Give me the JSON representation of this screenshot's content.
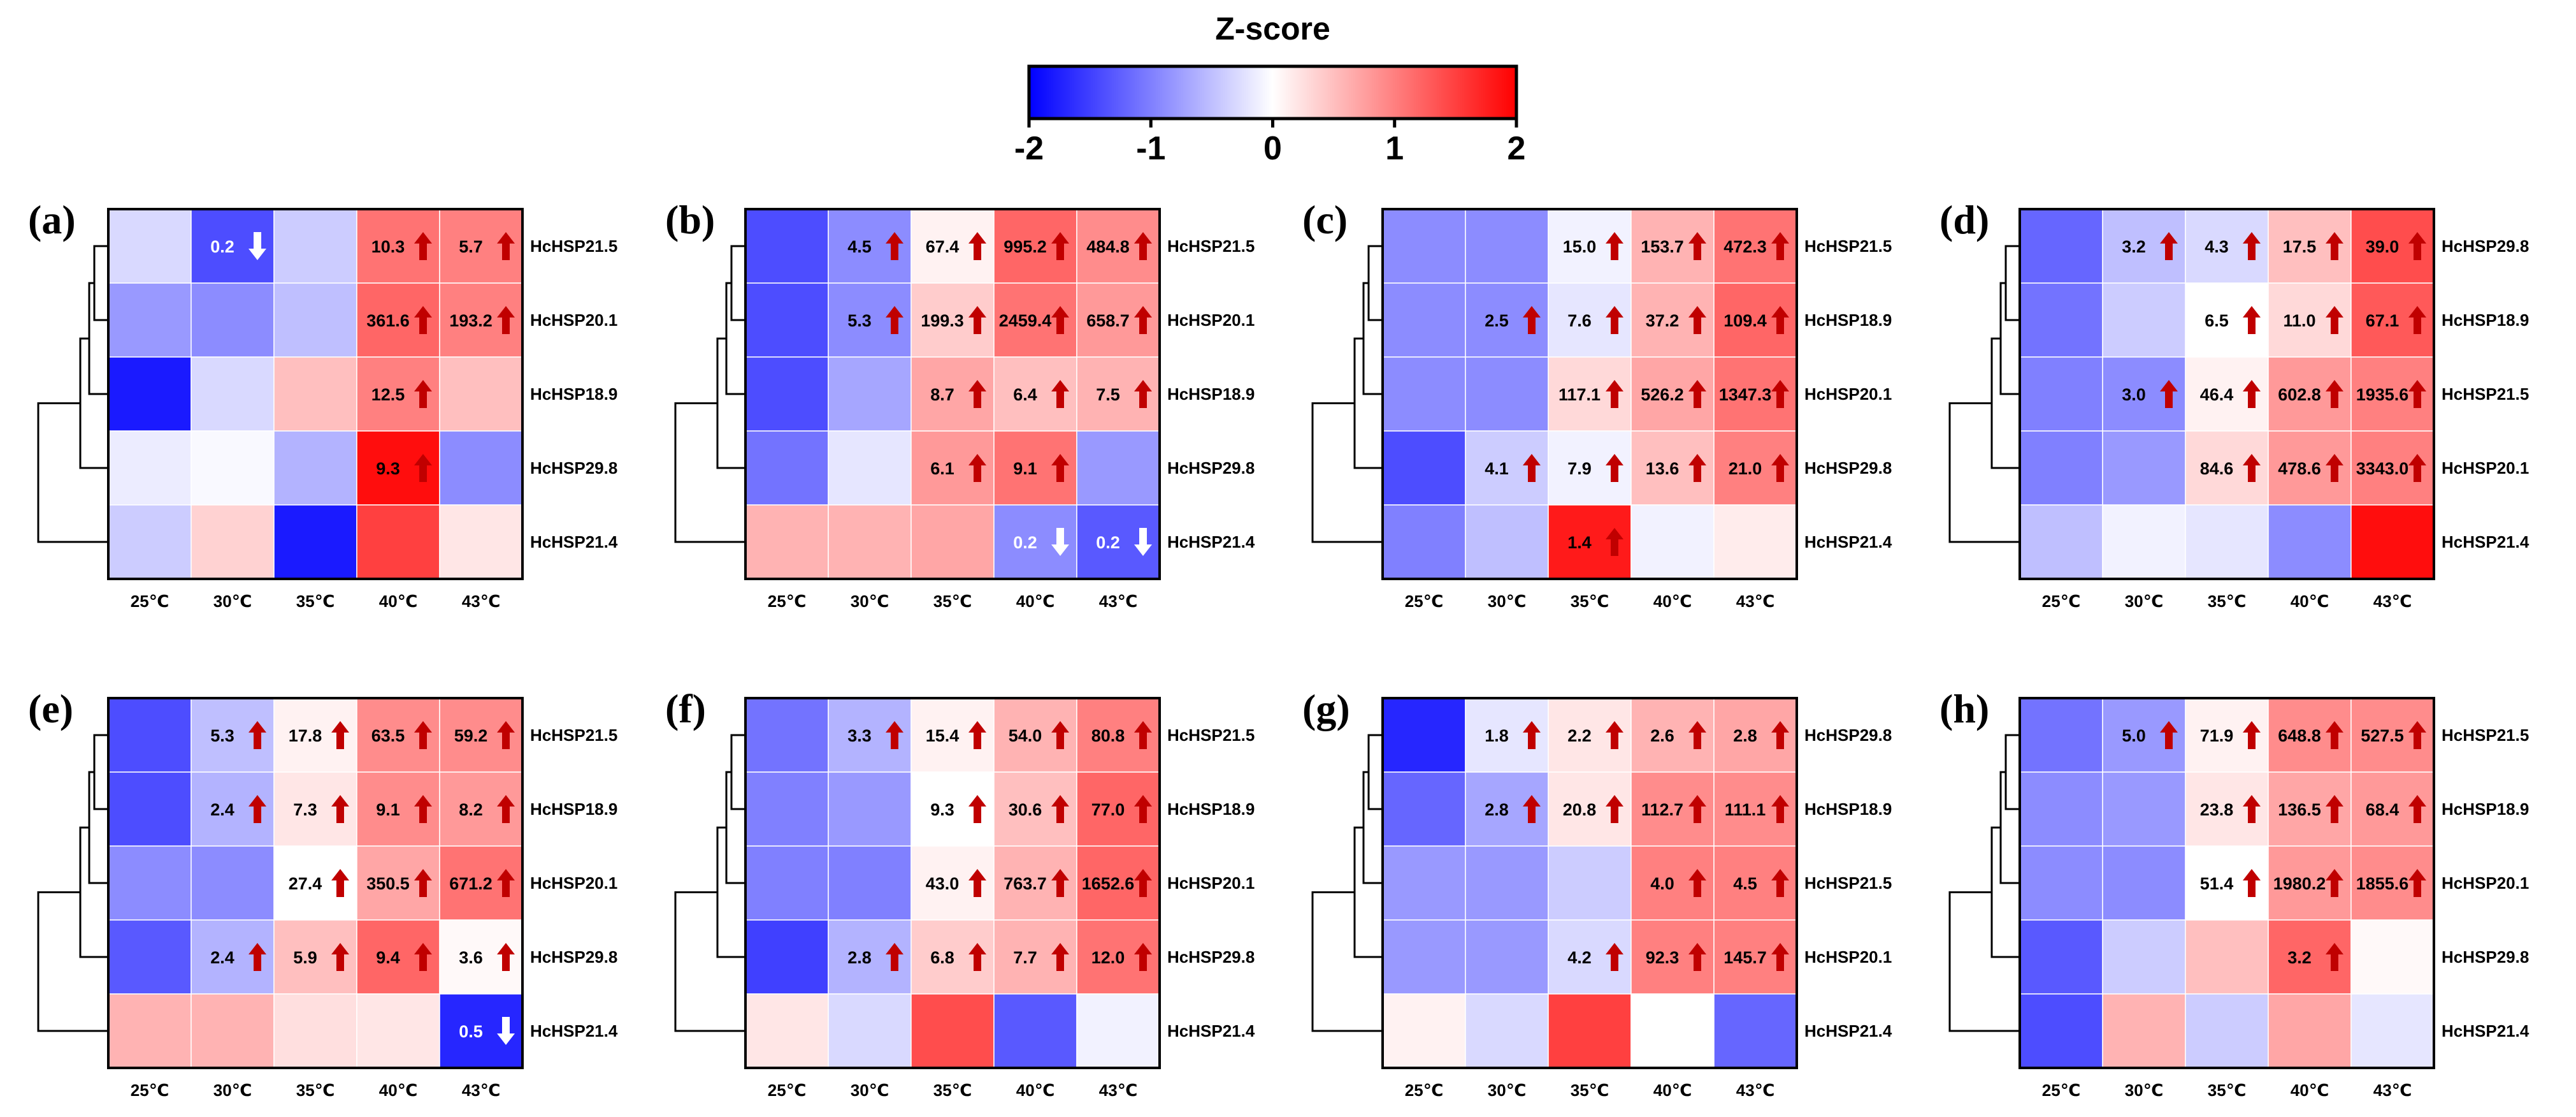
{
  "chart_data": {
    "type": "heatmap",
    "colorbar": {
      "title": "Z-score",
      "range": [
        -2,
        2
      ],
      "ticks": [
        "-2",
        "-1",
        "0",
        "1",
        "2"
      ],
      "colors": {
        "low": "#0000ff",
        "mid": "#ffffff",
        "high": "#ff0000"
      }
    },
    "arrow_colors": {
      "up": "#c00000",
      "down": "#ffffff"
    },
    "panels": [
      {
        "label": "(a)",
        "columns": [
          "25℃",
          "30℃",
          "35℃",
          "40℃",
          "43℃"
        ],
        "rows": [
          "HcHSP21.5",
          "HcHSP20.1",
          "HcHSP18.9",
          "HcHSP29.8",
          "HcHSP21.4"
        ],
        "z": [
          [
            -0.3,
            -1.4,
            -0.4,
            1.1,
            1.0
          ],
          [
            -0.8,
            -0.9,
            -0.5,
            1.2,
            1.0
          ],
          [
            -1.8,
            -0.3,
            0.5,
            1.0,
            0.5
          ],
          [
            -0.15,
            -0.05,
            -0.6,
            1.9,
            -0.9
          ],
          [
            -0.4,
            0.35,
            -1.8,
            1.5,
            0.2
          ]
        ],
        "annotations": [
          [
            null,
            {
              "value": "0.2",
              "arrow": "down"
            },
            null,
            {
              "value": "10.3",
              "arrow": "up"
            },
            {
              "value": "5.7",
              "arrow": "up"
            }
          ],
          [
            null,
            null,
            null,
            {
              "value": "361.6",
              "arrow": "up"
            },
            {
              "value": "193.2",
              "arrow": "up"
            }
          ],
          [
            null,
            null,
            null,
            {
              "value": "12.5",
              "arrow": "up"
            },
            null
          ],
          [
            null,
            null,
            null,
            {
              "value": "9.3",
              "arrow": "up"
            },
            null
          ],
          [
            null,
            null,
            null,
            null,
            null
          ]
        ]
      },
      {
        "label": "(b)",
        "columns": [
          "25℃",
          "30℃",
          "35℃",
          "40℃",
          "43℃"
        ],
        "rows": [
          "HcHSP21.5",
          "HcHSP20.1",
          "HcHSP18.9",
          "HcHSP29.8",
          "HcHSP21.4"
        ],
        "z": [
          [
            -1.4,
            -0.9,
            0.1,
            1.2,
            0.9
          ],
          [
            -1.4,
            -0.9,
            0.4,
            1.1,
            0.8
          ],
          [
            -1.4,
            -0.7,
            0.7,
            0.5,
            0.6
          ],
          [
            -1.1,
            -0.2,
            0.8,
            1.1,
            -0.8
          ],
          [
            0.6,
            0.6,
            0.7,
            -0.9,
            -1.3
          ]
        ],
        "annotations": [
          [
            null,
            {
              "value": "4.5",
              "arrow": "up"
            },
            {
              "value": "67.4",
              "arrow": "up"
            },
            {
              "value": "995.2",
              "arrow": "up"
            },
            {
              "value": "484.8",
              "arrow": "up"
            }
          ],
          [
            null,
            {
              "value": "5.3",
              "arrow": "up"
            },
            {
              "value": "199.3",
              "arrow": "up"
            },
            {
              "value": "2459.4",
              "arrow": "up"
            },
            {
              "value": "658.7",
              "arrow": "up"
            }
          ],
          [
            null,
            null,
            {
              "value": "8.7",
              "arrow": "up"
            },
            {
              "value": "6.4",
              "arrow": "up"
            },
            {
              "value": "7.5",
              "arrow": "up"
            }
          ],
          [
            null,
            null,
            {
              "value": "6.1",
              "arrow": "up"
            },
            {
              "value": "9.1",
              "arrow": "up"
            },
            null
          ],
          [
            null,
            null,
            null,
            {
              "value": "0.2",
              "arrow": "down"
            },
            {
              "value": "0.2",
              "arrow": "down"
            }
          ]
        ]
      },
      {
        "label": "(c)",
        "columns": [
          "25℃",
          "30℃",
          "35℃",
          "40℃",
          "43℃"
        ],
        "rows": [
          "HcHSP21.5",
          "HcHSP18.9",
          "HcHSP20.1",
          "HcHSP29.8",
          "HcHSP21.4"
        ],
        "z": [
          [
            -0.9,
            -0.9,
            -0.1,
            0.6,
            1.1
          ],
          [
            -0.9,
            -0.9,
            -0.2,
            0.6,
            1.2
          ],
          [
            -0.9,
            -0.9,
            0.3,
            0.7,
            1.1
          ],
          [
            -1.4,
            -0.4,
            -0.1,
            0.5,
            1.0
          ],
          [
            -1.0,
            -0.5,
            1.8,
            -0.1,
            0.15
          ]
        ],
        "annotations": [
          [
            null,
            null,
            {
              "value": "15.0",
              "arrow": "up"
            },
            {
              "value": "153.7",
              "arrow": "up"
            },
            {
              "value": "472.3",
              "arrow": "up"
            }
          ],
          [
            null,
            {
              "value": "2.5",
              "arrow": "up"
            },
            {
              "value": "7.6",
              "arrow": "up"
            },
            {
              "value": "37.2",
              "arrow": "up"
            },
            {
              "value": "109.4",
              "arrow": "up"
            }
          ],
          [
            null,
            null,
            {
              "value": "117.1",
              "arrow": "up"
            },
            {
              "value": "526.2",
              "arrow": "up"
            },
            {
              "value": "1347.3",
              "arrow": "up"
            }
          ],
          [
            null,
            {
              "value": "4.1",
              "arrow": "up"
            },
            {
              "value": "7.9",
              "arrow": "up"
            },
            {
              "value": "13.6",
              "arrow": "up"
            },
            {
              "value": "21.0",
              "arrow": "up"
            }
          ],
          [
            null,
            null,
            {
              "value": "1.4",
              "arrow": "up"
            },
            null,
            null
          ]
        ]
      },
      {
        "label": "(d)",
        "columns": [
          "25℃",
          "30℃",
          "35℃",
          "40℃",
          "43℃"
        ],
        "rows": [
          "HcHSP29.8",
          "HcHSP18.9",
          "HcHSP21.5",
          "HcHSP20.1",
          "HcHSP21.4"
        ],
        "z": [
          [
            -1.2,
            -0.5,
            -0.3,
            0.5,
            1.4
          ],
          [
            -1.1,
            -0.4,
            0.0,
            0.3,
            1.3
          ],
          [
            -1.0,
            -0.9,
            0.1,
            0.8,
            1.0
          ],
          [
            -1.0,
            -0.8,
            0.3,
            0.8,
            1.0
          ],
          [
            -0.5,
            -0.1,
            -0.2,
            -0.9,
            1.9
          ]
        ],
        "annotations": [
          [
            null,
            {
              "value": "3.2",
              "arrow": "up"
            },
            {
              "value": "4.3",
              "arrow": "up"
            },
            {
              "value": "17.5",
              "arrow": "up"
            },
            {
              "value": "39.0",
              "arrow": "up"
            }
          ],
          [
            null,
            null,
            {
              "value": "6.5",
              "arrow": "up"
            },
            {
              "value": "11.0",
              "arrow": "up"
            },
            {
              "value": "67.1",
              "arrow": "up"
            }
          ],
          [
            null,
            {
              "value": "3.0",
              "arrow": "up"
            },
            {
              "value": "46.4",
              "arrow": "up"
            },
            {
              "value": "602.8",
              "arrow": "up"
            },
            {
              "value": "1935.6",
              "arrow": "up"
            }
          ],
          [
            null,
            null,
            {
              "value": "84.6",
              "arrow": "up"
            },
            {
              "value": "478.6",
              "arrow": "up"
            },
            {
              "value": "3343.0",
              "arrow": "up"
            }
          ],
          [
            null,
            null,
            null,
            null,
            null
          ]
        ]
      },
      {
        "label": "(e)",
        "columns": [
          "25℃",
          "30℃",
          "35℃",
          "40℃",
          "43℃"
        ],
        "rows": [
          "HcHSP21.5",
          "HcHSP18.9",
          "HcHSP20.1",
          "HcHSP29.8",
          "HcHSP21.4"
        ],
        "z": [
          [
            -1.4,
            -0.5,
            0.1,
            0.9,
            0.9
          ],
          [
            -1.4,
            -0.6,
            0.2,
            0.9,
            0.8
          ],
          [
            -0.9,
            -0.9,
            0.0,
            0.7,
            1.1
          ],
          [
            -1.3,
            -0.6,
            0.5,
            1.2,
            0.05
          ],
          [
            0.6,
            0.6,
            0.25,
            0.2,
            -1.7
          ]
        ],
        "annotations": [
          [
            null,
            {
              "value": "5.3",
              "arrow": "up"
            },
            {
              "value": "17.8",
              "arrow": "up"
            },
            {
              "value": "63.5",
              "arrow": "up"
            },
            {
              "value": "59.2",
              "arrow": "up"
            }
          ],
          [
            null,
            {
              "value": "2.4",
              "arrow": "up"
            },
            {
              "value": "7.3",
              "arrow": "up"
            },
            {
              "value": "9.1",
              "arrow": "up"
            },
            {
              "value": "8.2",
              "arrow": "up"
            }
          ],
          [
            null,
            null,
            {
              "value": "27.4",
              "arrow": "up"
            },
            {
              "value": "350.5",
              "arrow": "up"
            },
            {
              "value": "671.2",
              "arrow": "up"
            }
          ],
          [
            null,
            {
              "value": "2.4",
              "arrow": "up"
            },
            {
              "value": "5.9",
              "arrow": "up"
            },
            {
              "value": "9.4",
              "arrow": "up"
            },
            {
              "value": "3.6",
              "arrow": "up"
            }
          ],
          [
            null,
            null,
            null,
            null,
            {
              "value": "0.5",
              "arrow": "down"
            }
          ]
        ]
      },
      {
        "label": "(f)",
        "columns": [
          "25℃",
          "30℃",
          "35℃",
          "40℃",
          "43℃"
        ],
        "rows": [
          "HcHSP21.5",
          "HcHSP18.9",
          "HcHSP20.1",
          "HcHSP29.8",
          "HcHSP21.4"
        ],
        "z": [
          [
            -1.1,
            -0.6,
            0.1,
            0.6,
            1.0
          ],
          [
            -1.0,
            -0.8,
            0.0,
            0.5,
            1.2
          ],
          [
            -1.0,
            -1.0,
            0.1,
            0.6,
            1.2
          ],
          [
            -1.5,
            -0.6,
            0.4,
            0.6,
            1.1
          ],
          [
            0.2,
            -0.3,
            1.4,
            -1.3,
            -0.1
          ]
        ],
        "annotations": [
          [
            null,
            {
              "value": "3.3",
              "arrow": "up"
            },
            {
              "value": "15.4",
              "arrow": "up"
            },
            {
              "value": "54.0",
              "arrow": "up"
            },
            {
              "value": "80.8",
              "arrow": "up"
            }
          ],
          [
            null,
            null,
            {
              "value": "9.3",
              "arrow": "up"
            },
            {
              "value": "30.6",
              "arrow": "up"
            },
            {
              "value": "77.0",
              "arrow": "up"
            }
          ],
          [
            null,
            null,
            {
              "value": "43.0",
              "arrow": "up"
            },
            {
              "value": "763.7",
              "arrow": "up"
            },
            {
              "value": "1652.6",
              "arrow": "up"
            }
          ],
          [
            null,
            {
              "value": "2.8",
              "arrow": "up"
            },
            {
              "value": "6.8",
              "arrow": "up"
            },
            {
              "value": "7.7",
              "arrow": "up"
            },
            {
              "value": "12.0",
              "arrow": "up"
            }
          ],
          [
            null,
            null,
            null,
            null,
            null
          ]
        ]
      },
      {
        "label": "(g)",
        "columns": [
          "25℃",
          "30℃",
          "35℃",
          "40℃",
          "43℃"
        ],
        "rows": [
          "HcHSP29.8",
          "HcHSP18.9",
          "HcHSP21.5",
          "HcHSP20.1",
          "HcHSP21.4"
        ],
        "z": [
          [
            -1.7,
            -0.2,
            0.2,
            0.6,
            0.7
          ],
          [
            -1.2,
            -0.7,
            0.2,
            0.9,
            0.9
          ],
          [
            -0.8,
            -0.8,
            -0.4,
            1.0,
            1.0
          ],
          [
            -0.8,
            -0.8,
            -0.3,
            1.0,
            1.0
          ],
          [
            0.1,
            -0.3,
            1.5,
            0.0,
            -1.2
          ]
        ],
        "annotations": [
          [
            null,
            {
              "value": "1.8",
              "arrow": "up"
            },
            {
              "value": "2.2",
              "arrow": "up"
            },
            {
              "value": "2.6",
              "arrow": "up"
            },
            {
              "value": "2.8",
              "arrow": "up"
            }
          ],
          [
            null,
            {
              "value": "2.8",
              "arrow": "up"
            },
            {
              "value": "20.8",
              "arrow": "up"
            },
            {
              "value": "112.7",
              "arrow": "up"
            },
            {
              "value": "111.1",
              "arrow": "up"
            }
          ],
          [
            null,
            null,
            null,
            {
              "value": "4.0",
              "arrow": "up"
            },
            {
              "value": "4.5",
              "arrow": "up"
            }
          ],
          [
            null,
            null,
            {
              "value": "4.2",
              "arrow": "up"
            },
            {
              "value": "92.3",
              "arrow": "up"
            },
            {
              "value": "145.7",
              "arrow": "up"
            }
          ],
          [
            null,
            null,
            null,
            null,
            null
          ]
        ]
      },
      {
        "label": "(h)",
        "columns": [
          "25℃",
          "30℃",
          "35℃",
          "40℃",
          "43℃"
        ],
        "rows": [
          "HcHSP21.5",
          "HcHSP18.9",
          "HcHSP20.1",
          "HcHSP29.8",
          "HcHSP21.4"
        ],
        "z": [
          [
            -1.1,
            -0.8,
            0.1,
            0.9,
            0.9
          ],
          [
            -0.9,
            -0.8,
            0.2,
            0.7,
            0.8
          ],
          [
            -0.9,
            -0.9,
            0.0,
            0.8,
            0.9
          ],
          [
            -1.3,
            -0.4,
            0.5,
            1.2,
            0.05
          ],
          [
            -1.4,
            0.6,
            -0.4,
            0.7,
            -0.2
          ]
        ],
        "annotations": [
          [
            null,
            {
              "value": "5.0",
              "arrow": "up"
            },
            {
              "value": "71.9",
              "arrow": "up"
            },
            {
              "value": "648.8",
              "arrow": "up"
            },
            {
              "value": "527.5",
              "arrow": "up"
            }
          ],
          [
            null,
            null,
            {
              "value": "23.8",
              "arrow": "up"
            },
            {
              "value": "136.5",
              "arrow": "up"
            },
            {
              "value": "68.4",
              "arrow": "up"
            }
          ],
          [
            null,
            null,
            {
              "value": "51.4",
              "arrow": "up"
            },
            {
              "value": "1980.2",
              "arrow": "up"
            },
            {
              "value": "1855.6",
              "arrow": "up"
            }
          ],
          [
            null,
            null,
            null,
            {
              "value": "3.2",
              "arrow": "up"
            },
            null
          ],
          [
            null,
            null,
            null,
            null,
            null
          ]
        ]
      }
    ]
  }
}
